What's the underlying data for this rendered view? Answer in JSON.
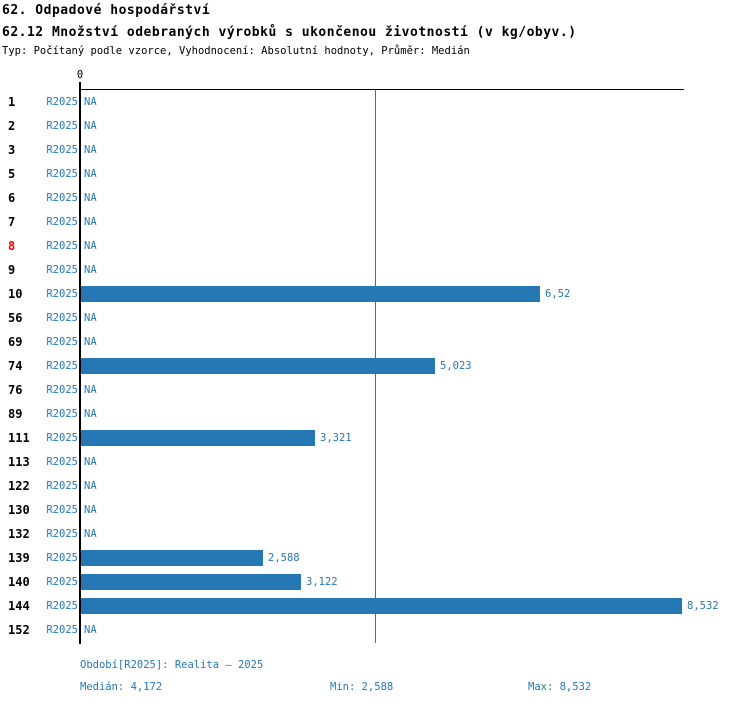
{
  "header": {
    "title_line1": "62. Odpadové hospodářství",
    "title_line2": "62.12 Množství odebraných výrobků s ukončenou životností (v kg/obyv.)",
    "subtitle": "Typ: Počítaný podle vzorce, Vyhodnocení: Absolutní hodnoty, Průměr: Medián"
  },
  "colors": {
    "bar_blue": "#2578b4",
    "text_blue": "#2578b4",
    "axis_black": "#000000",
    "row_number_black": "#000000",
    "row_number_highlight_red": "#ff0000",
    "background": "#ffffff"
  },
  "chart_data": {
    "type": "bar",
    "orientation": "horizontal",
    "title": "62.12 Množství odebraných výrobků s ukončenou životností (v kg/obyv.)",
    "unit": "kg/obyv.",
    "axis": {
      "zero_label": "0",
      "x_min": 0,
      "x_max": 8.532,
      "median_value": 4.172,
      "grid": false
    },
    "series_label": "R2025",
    "categories": [
      "1",
      "2",
      "3",
      "5",
      "6",
      "7",
      "8",
      "9",
      "10",
      "56",
      "69",
      "74",
      "76",
      "89",
      "111",
      "113",
      "122",
      "130",
      "132",
      "139",
      "140",
      "144",
      "152"
    ],
    "rows": [
      {
        "id": "1",
        "period": "R2025",
        "value": null,
        "display": "NA"
      },
      {
        "id": "2",
        "period": "R2025",
        "value": null,
        "display": "NA"
      },
      {
        "id": "3",
        "period": "R2025",
        "value": null,
        "display": "NA"
      },
      {
        "id": "5",
        "period": "R2025",
        "value": null,
        "display": "NA"
      },
      {
        "id": "6",
        "period": "R2025",
        "value": null,
        "display": "NA"
      },
      {
        "id": "7",
        "period": "R2025",
        "value": null,
        "display": "NA"
      },
      {
        "id": "8",
        "period": "R2025",
        "value": null,
        "display": "NA",
        "highlight": true
      },
      {
        "id": "9",
        "period": "R2025",
        "value": null,
        "display": "NA"
      },
      {
        "id": "10",
        "period": "R2025",
        "value": 6.52,
        "display": "6,52"
      },
      {
        "id": "56",
        "period": "R2025",
        "value": null,
        "display": "NA"
      },
      {
        "id": "69",
        "period": "R2025",
        "value": null,
        "display": "NA"
      },
      {
        "id": "74",
        "period": "R2025",
        "value": 5.023,
        "display": "5,023"
      },
      {
        "id": "76",
        "period": "R2025",
        "value": null,
        "display": "NA"
      },
      {
        "id": "89",
        "period": "R2025",
        "value": null,
        "display": "NA"
      },
      {
        "id": "111",
        "period": "R2025",
        "value": 3.321,
        "display": "3,321"
      },
      {
        "id": "113",
        "period": "R2025",
        "value": null,
        "display": "NA"
      },
      {
        "id": "122",
        "period": "R2025",
        "value": null,
        "display": "NA"
      },
      {
        "id": "130",
        "period": "R2025",
        "value": null,
        "display": "NA"
      },
      {
        "id": "132",
        "period": "R2025",
        "value": null,
        "display": "NA"
      },
      {
        "id": "139",
        "period": "R2025",
        "value": 2.588,
        "display": "2,588"
      },
      {
        "id": "140",
        "period": "R2025",
        "value": 3.122,
        "display": "3,122"
      },
      {
        "id": "144",
        "period": "R2025",
        "value": 8.532,
        "display": "8,532"
      },
      {
        "id": "152",
        "period": "R2025",
        "value": null,
        "display": "NA"
      }
    ],
    "summary": {
      "median": 4.172,
      "min": 2.588,
      "max": 8.532
    },
    "footer": {
      "period_line": "Období[R2025]: Realita – 2025",
      "median_label": "Medián: 4,172",
      "min_label": "Min: 2,588",
      "max_label": "Max: 8,532"
    }
  }
}
